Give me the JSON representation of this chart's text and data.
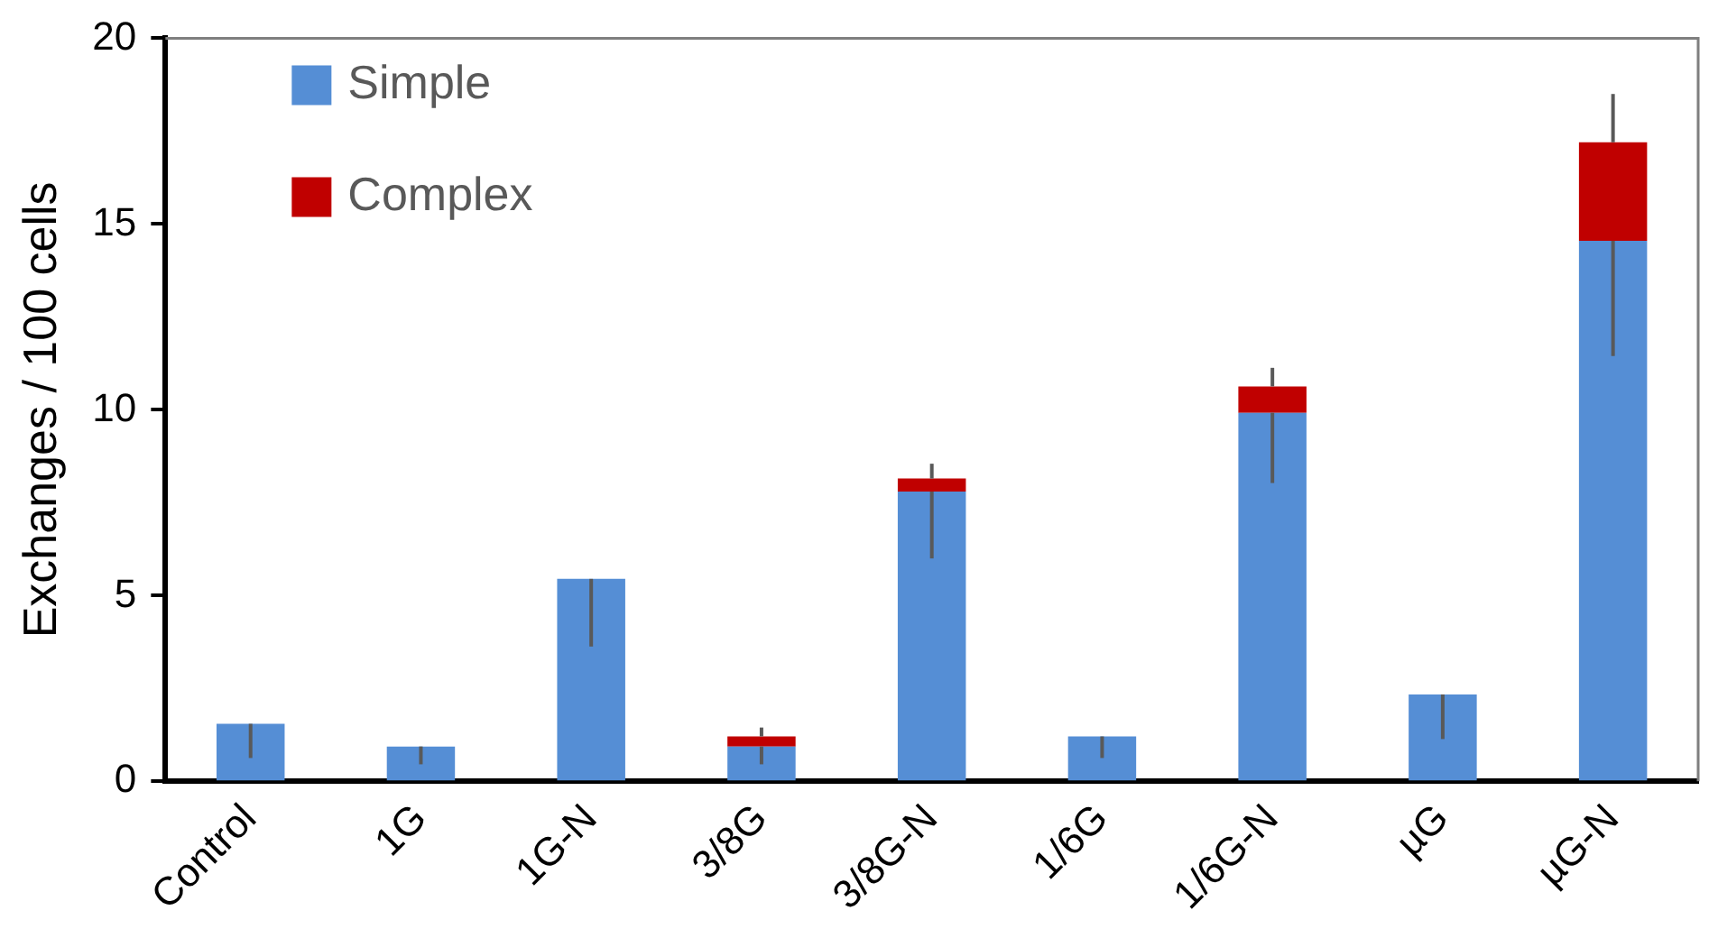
{
  "chart_data": {
    "type": "bar",
    "ylabel": "Exchanges / 100 cells",
    "categories": [
      "Control",
      "1G",
      "1G-N",
      "3/8G",
      "3/8G-N",
      "1/6G",
      "1/6G-N",
      "µG",
      "µG-N"
    ],
    "stacked": true,
    "ylim": [
      0,
      20
    ],
    "yticks": [
      0,
      5,
      10,
      15,
      20
    ],
    "grid": false,
    "legend": "top left",
    "series": [
      {
        "name": "Simple",
        "color": "#558ed5",
        "values": [
          1.55,
          0.94,
          5.45,
          0.94,
          7.8,
          1.21,
          9.92,
          2.34,
          14.55
        ],
        "errors": [
          [
            0.63,
            1.55
          ],
          [
            0.46,
            0.94
          ],
          [
            3.63,
            5.45
          ],
          [
            0.46,
            0.94
          ],
          [
            6.0,
            7.8
          ],
          [
            0.63,
            1.21
          ],
          [
            8.03,
            9.92
          ],
          [
            1.14,
            2.34
          ],
          [
            11.45,
            14.55
          ]
        ]
      },
      {
        "name": "Complex",
        "color": "#c00000",
        "values": [
          0,
          0,
          0,
          0.27,
          0.35,
          0,
          0.71,
          0,
          2.65
        ],
        "errors": [
          null,
          null,
          null,
          [
            1.21,
            1.45
          ],
          [
            8.15,
            8.55
          ],
          null,
          [
            10.63,
            11.13
          ],
          null,
          [
            17.2,
            18.5
          ]
        ]
      }
    ]
  }
}
